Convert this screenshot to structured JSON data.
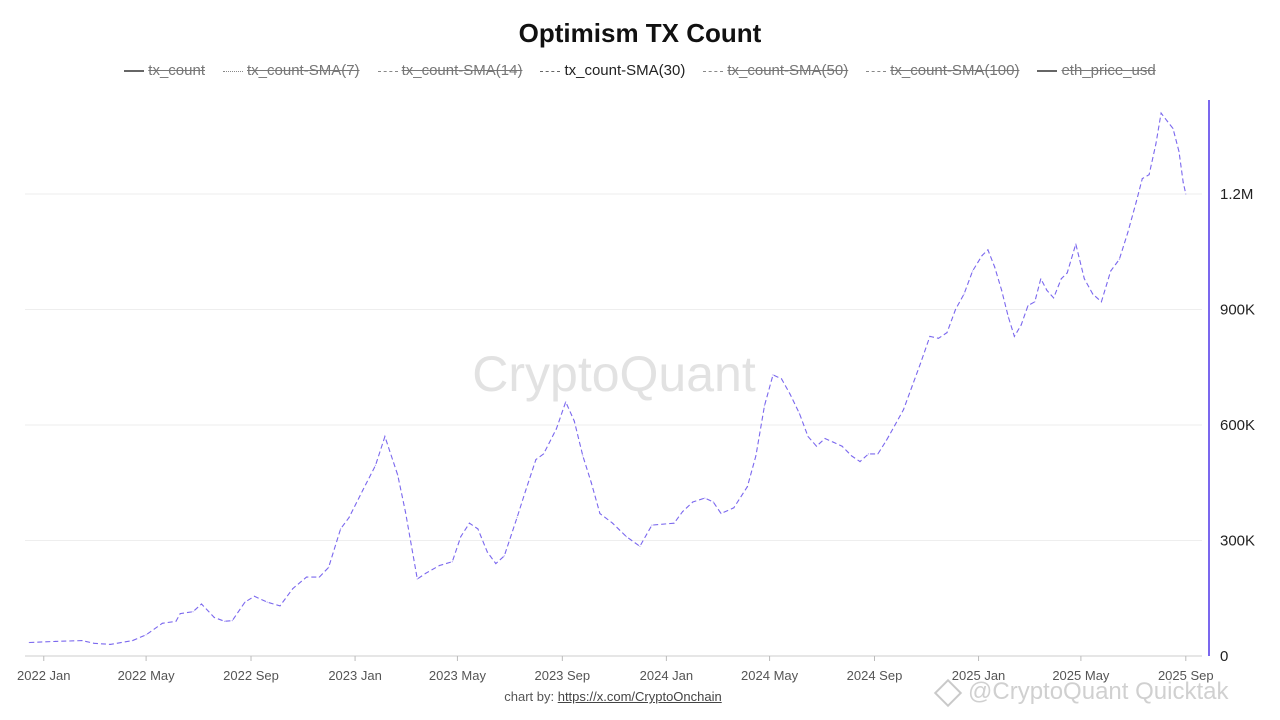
{
  "title": "Optimism TX Count",
  "legend": [
    {
      "label": "tx_count",
      "style": "solid",
      "visible": false
    },
    {
      "label": "tx_count-SMA(7)",
      "style": "dotted",
      "visible": false
    },
    {
      "label": "tx_count-SMA(14)",
      "style": "dashed",
      "visible": false
    },
    {
      "label": "tx_count-SMA(30)",
      "style": "dashdot",
      "visible": true
    },
    {
      "label": "tx_count-SMA(50)",
      "style": "dashed",
      "visible": false
    },
    {
      "label": "tx_count-SMA(100)",
      "style": "dashed",
      "visible": false
    },
    {
      "label": "eth_price_usd",
      "style": "solid",
      "visible": false
    }
  ],
  "credit": {
    "prefix": "chart by: ",
    "link_text": "https://x.com/CryptoOnchain"
  },
  "watermark": "CryptoQuant",
  "watermark2": "@CryptoQuant Quicktak",
  "colors": {
    "series": "#7b68ee",
    "axis_line": "#7b68ee",
    "grid": "#eeeeee"
  },
  "chart_data": {
    "type": "line",
    "title": "Optimism TX Count",
    "x_ticks": [
      "2022 Jan",
      "2022 May",
      "2022 Sep",
      "2023 Jan",
      "2023 May",
      "2023 Sep",
      "2024 Jan",
      "2024 May",
      "2024 Sep",
      "2025 Jan",
      "2025 May",
      "2025 Sep"
    ],
    "y_ticks": [
      {
        "value": 0,
        "label": "0"
      },
      {
        "value": 300000,
        "label": "300K"
      },
      {
        "value": 600000,
        "label": "600K"
      },
      {
        "value": 900000,
        "label": "900K"
      },
      {
        "value": 1200000,
        "label": "1.2M"
      }
    ],
    "ylim": [
      0,
      1470000
    ],
    "xlim": [
      "2021-12-10",
      "2025-09-20"
    ],
    "y_axis_side": "right",
    "grid": true,
    "legend_position": "top",
    "series": [
      {
        "name": "tx_count-SMA(30)",
        "visible": true,
        "points": [
          [
            "2021-12-15",
            35000
          ],
          [
            "2022-01-15",
            38000
          ],
          [
            "2022-02-15",
            40000
          ],
          [
            "2022-03-01",
            33000
          ],
          [
            "2022-03-20",
            30000
          ],
          [
            "2022-04-15",
            40000
          ],
          [
            "2022-05-01",
            55000
          ],
          [
            "2022-05-20",
            85000
          ],
          [
            "2022-06-05",
            90000
          ],
          [
            "2022-06-10",
            110000
          ],
          [
            "2022-06-25",
            115000
          ],
          [
            "2022-07-05",
            135000
          ],
          [
            "2022-07-20",
            100000
          ],
          [
            "2022-08-01",
            90000
          ],
          [
            "2022-08-10",
            92000
          ],
          [
            "2022-08-25",
            140000
          ],
          [
            "2022-09-05",
            155000
          ],
          [
            "2022-09-20",
            140000
          ],
          [
            "2022-10-05",
            130000
          ],
          [
            "2022-10-20",
            175000
          ],
          [
            "2022-11-05",
            205000
          ],
          [
            "2022-11-20",
            205000
          ],
          [
            "2022-12-01",
            230000
          ],
          [
            "2022-12-15",
            330000
          ],
          [
            "2022-12-25",
            360000
          ],
          [
            "2023-01-10",
            430000
          ],
          [
            "2023-01-25",
            495000
          ],
          [
            "2023-02-05",
            570000
          ],
          [
            "2023-02-20",
            470000
          ],
          [
            "2023-03-01",
            375000
          ],
          [
            "2023-03-15",
            200000
          ],
          [
            "2023-03-25",
            215000
          ],
          [
            "2023-04-10",
            235000
          ],
          [
            "2023-04-25",
            245000
          ],
          [
            "2023-05-05",
            310000
          ],
          [
            "2023-05-15",
            345000
          ],
          [
            "2023-05-25",
            330000
          ],
          [
            "2023-06-05",
            270000
          ],
          [
            "2023-06-15",
            240000
          ],
          [
            "2023-06-25",
            260000
          ],
          [
            "2023-07-10",
            360000
          ],
          [
            "2023-07-20",
            430000
          ],
          [
            "2023-08-01",
            510000
          ],
          [
            "2023-08-10",
            525000
          ],
          [
            "2023-08-25",
            590000
          ],
          [
            "2023-09-05",
            660000
          ],
          [
            "2023-09-15",
            610000
          ],
          [
            "2023-09-25",
            520000
          ],
          [
            "2023-10-05",
            450000
          ],
          [
            "2023-10-15",
            370000
          ],
          [
            "2023-10-30",
            345000
          ],
          [
            "2023-11-15",
            310000
          ],
          [
            "2023-12-01",
            285000
          ],
          [
            "2023-12-15",
            340000
          ],
          [
            "2024-01-10",
            345000
          ],
          [
            "2024-01-20",
            375000
          ],
          [
            "2024-02-01",
            400000
          ],
          [
            "2024-02-15",
            410000
          ],
          [
            "2024-02-25",
            400000
          ],
          [
            "2024-03-05",
            370000
          ],
          [
            "2024-03-20",
            385000
          ],
          [
            "2024-04-05",
            440000
          ],
          [
            "2024-04-15",
            520000
          ],
          [
            "2024-04-25",
            650000
          ],
          [
            "2024-05-05",
            730000
          ],
          [
            "2024-05-15",
            720000
          ],
          [
            "2024-05-25",
            680000
          ],
          [
            "2024-06-05",
            630000
          ],
          [
            "2024-06-15",
            570000
          ],
          [
            "2024-06-25",
            545000
          ],
          [
            "2024-07-05",
            565000
          ],
          [
            "2024-07-15",
            555000
          ],
          [
            "2024-07-25",
            545000
          ],
          [
            "2024-08-05",
            520000
          ],
          [
            "2024-08-15",
            505000
          ],
          [
            "2024-08-25",
            525000
          ],
          [
            "2024-09-05",
            525000
          ],
          [
            "2024-09-15",
            560000
          ],
          [
            "2024-09-25",
            600000
          ],
          [
            "2024-10-05",
            640000
          ],
          [
            "2024-10-15",
            700000
          ],
          [
            "2024-10-25",
            760000
          ],
          [
            "2024-11-05",
            830000
          ],
          [
            "2024-11-15",
            825000
          ],
          [
            "2024-11-25",
            840000
          ],
          [
            "2024-12-05",
            900000
          ],
          [
            "2024-12-15",
            940000
          ],
          [
            "2024-12-25",
            1000000
          ],
          [
            "2025-01-05",
            1040000
          ],
          [
            "2025-01-12",
            1055000
          ],
          [
            "2025-01-20",
            1010000
          ],
          [
            "2025-01-28",
            950000
          ],
          [
            "2025-02-05",
            880000
          ],
          [
            "2025-02-12",
            830000
          ],
          [
            "2025-02-20",
            860000
          ],
          [
            "2025-02-28",
            910000
          ],
          [
            "2025-03-08",
            920000
          ],
          [
            "2025-03-15",
            980000
          ],
          [
            "2025-03-22",
            950000
          ],
          [
            "2025-03-30",
            930000
          ],
          [
            "2025-04-08",
            980000
          ],
          [
            "2025-04-15",
            995000
          ],
          [
            "2025-04-25",
            1070000
          ],
          [
            "2025-05-05",
            980000
          ],
          [
            "2025-05-15",
            940000
          ],
          [
            "2025-05-25",
            920000
          ],
          [
            "2025-06-05",
            1000000
          ],
          [
            "2025-06-15",
            1030000
          ],
          [
            "2025-06-25",
            1100000
          ],
          [
            "2025-07-05",
            1180000
          ],
          [
            "2025-07-12",
            1240000
          ],
          [
            "2025-07-20",
            1250000
          ],
          [
            "2025-07-28",
            1330000
          ],
          [
            "2025-08-03",
            1410000
          ],
          [
            "2025-08-10",
            1390000
          ],
          [
            "2025-08-17",
            1370000
          ],
          [
            "2025-08-24",
            1310000
          ],
          [
            "2025-08-29",
            1230000
          ],
          [
            "2025-09-01",
            1200000
          ]
        ]
      }
    ]
  }
}
